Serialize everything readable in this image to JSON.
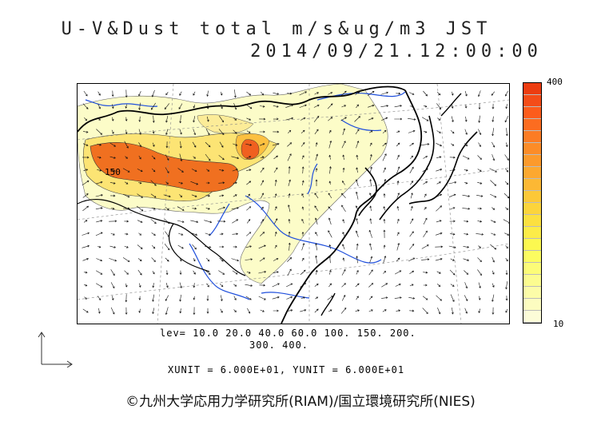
{
  "title": {
    "line1": "U-V&Dust total m/s&ug/m3 JST",
    "line2": "2014/09/21.12:00:00"
  },
  "map": {
    "contour_label": "150"
  },
  "colorbar": {
    "max_label": "400",
    "min_label": "10",
    "colors": [
      "#fcfcd8",
      "#fcfcc0",
      "#fcfca8",
      "#fcfc90",
      "#fcfc78",
      "#fcfc60",
      "#fcf850",
      "#fcec48",
      "#fce040",
      "#fcd43c",
      "#fcc838",
      "#fcb834",
      "#fca830",
      "#fc9a2c",
      "#fc8c28",
      "#fc7c24",
      "#fc6c20",
      "#fc5c1c",
      "#f44c18",
      "#ec3c10"
    ]
  },
  "info": {
    "levels_line1": "lev= 10.0 20.0 40.0 60.0 100. 150. 200.",
    "levels_line2": "300. 400.",
    "units": "XUNIT = 6.000E+01, YUNIT = 6.000E+01"
  },
  "credit": "©九州大学応用力学研究所(RIAM)/国立環境研究所(NIES)"
}
